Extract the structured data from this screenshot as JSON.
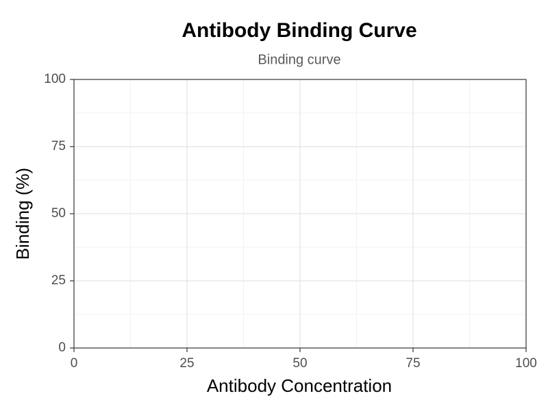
{
  "chart_data": {
    "type": "line",
    "title": "Antibody Binding Curve",
    "subtitle": "Binding curve",
    "xlabel": "Antibody Concentration",
    "ylabel": "Binding (%)",
    "series": [],
    "xlim": [
      0,
      100
    ],
    "xticks": [
      0,
      25,
      50,
      75,
      100
    ],
    "xminorticks": [
      12.5,
      37.5,
      62.5,
      87.5
    ],
    "ylim": [
      0,
      100
    ],
    "yticks": [
      0,
      25,
      50,
      75,
      100
    ],
    "yminorticks": [
      12.5,
      37.5,
      62.5,
      87.5
    ],
    "grid": true
  }
}
